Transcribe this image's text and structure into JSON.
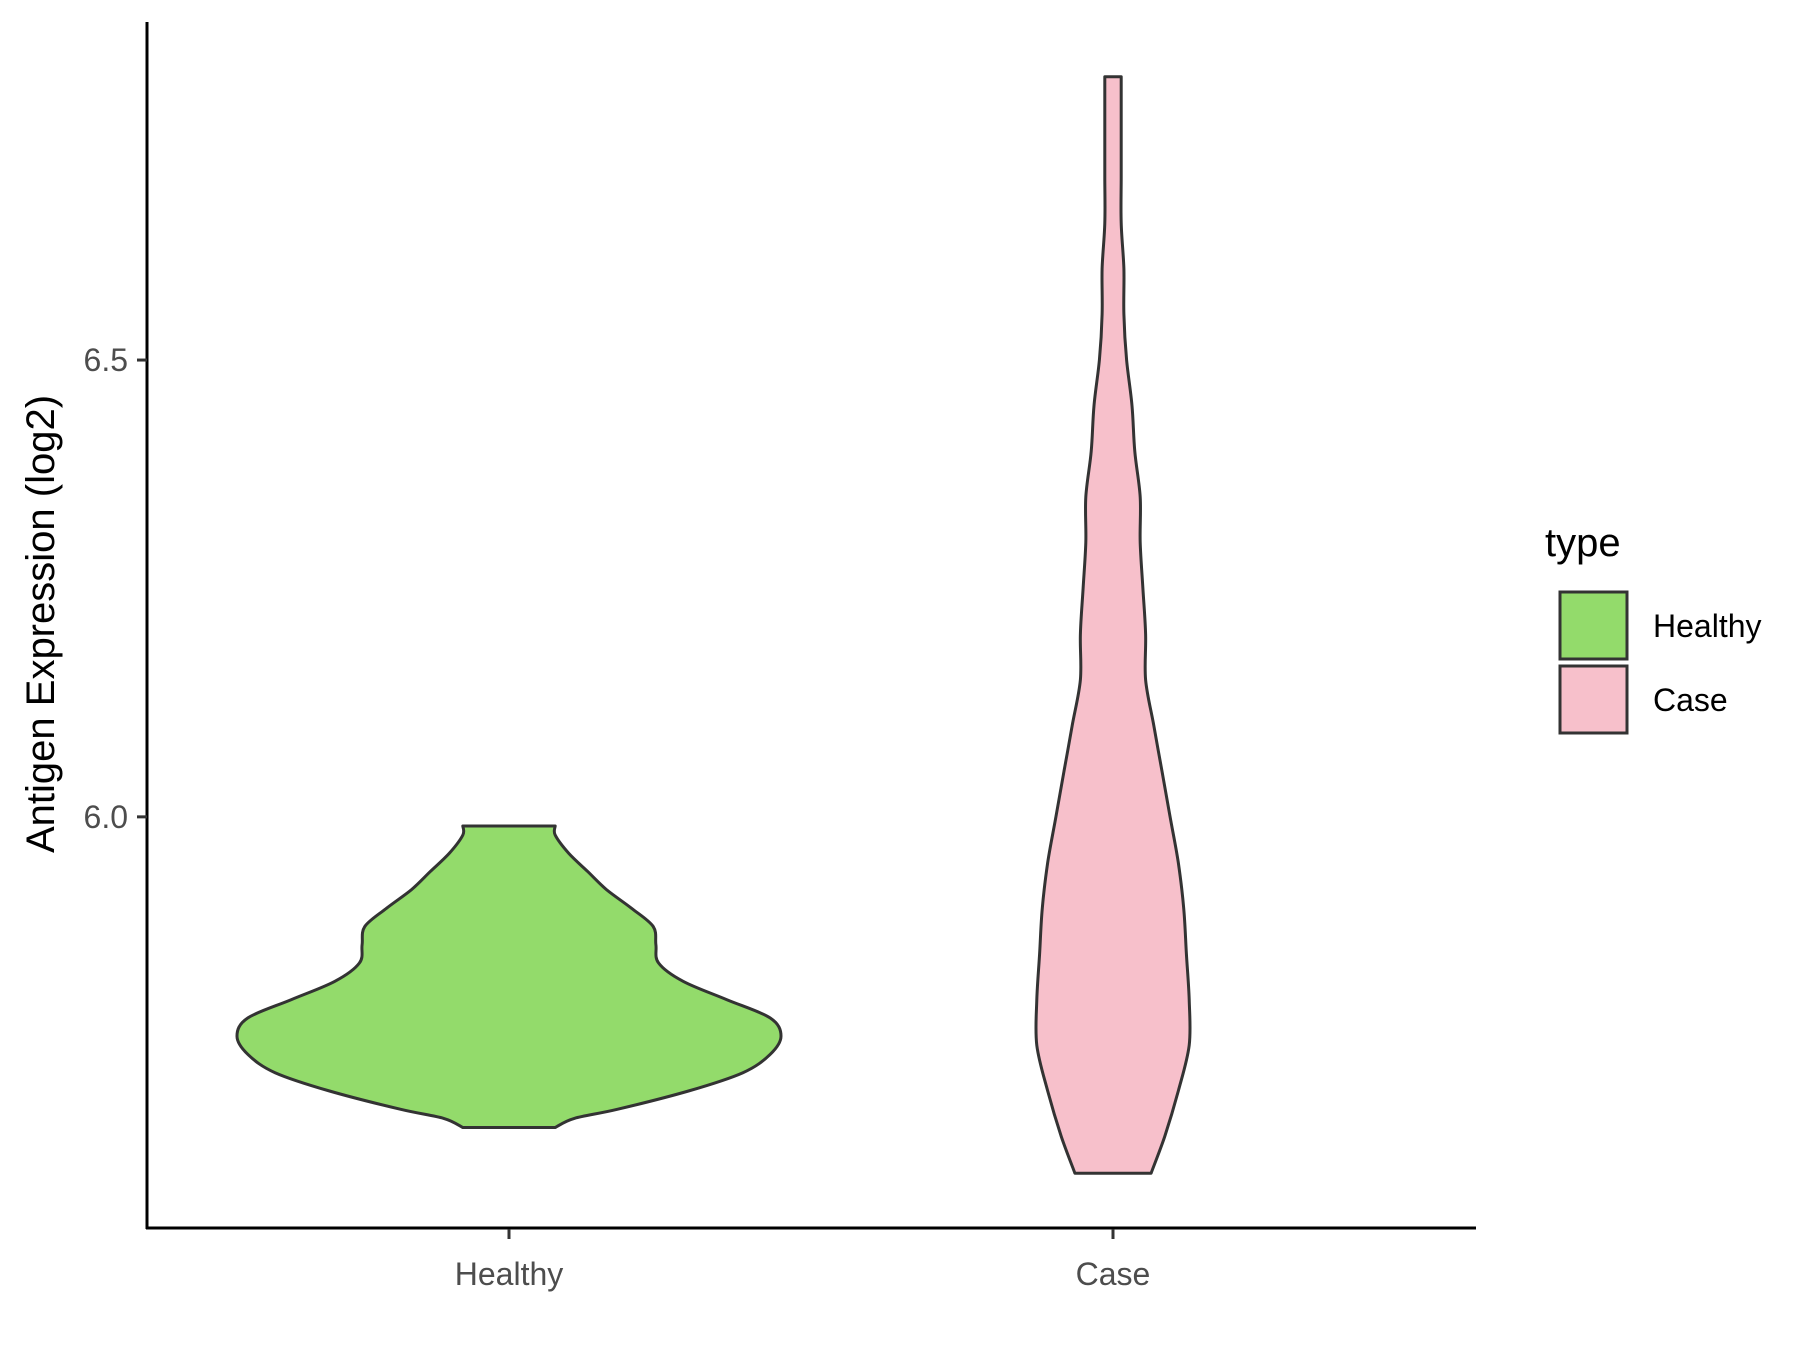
{
  "chart_data": {
    "type": "violin",
    "title": "",
    "xlabel": "",
    "ylabel": "Antigen Expression (log2)",
    "ylim": [
      5.55,
      6.87
    ],
    "yticks": [
      6.0,
      6.5
    ],
    "ytick_labels": [
      "6.0",
      "6.5"
    ],
    "categories": [
      "Healthy",
      "Case"
    ],
    "legend": {
      "title": "type",
      "position": "right",
      "entries": [
        {
          "label": "Healthy",
          "color": "#93DB6B"
        },
        {
          "label": "Case",
          "color": "#F7C0CB"
        }
      ]
    },
    "series": [
      {
        "name": "Healthy",
        "color": "#93DB6B",
        "min": 5.66,
        "max": 5.99,
        "density": [
          [
            5.66,
            0.17
          ],
          [
            5.67,
            0.24
          ],
          [
            5.68,
            0.4
          ],
          [
            5.7,
            0.66
          ],
          [
            5.72,
            0.86
          ],
          [
            5.74,
            0.96
          ],
          [
            5.76,
            1.0
          ],
          [
            5.78,
            0.96
          ],
          [
            5.8,
            0.8
          ],
          [
            5.82,
            0.64
          ],
          [
            5.84,
            0.55
          ],
          [
            5.86,
            0.54
          ],
          [
            5.88,
            0.53
          ],
          [
            5.9,
            0.45
          ],
          [
            5.92,
            0.36
          ],
          [
            5.94,
            0.29
          ],
          [
            5.96,
            0.22
          ],
          [
            5.98,
            0.17
          ],
          [
            5.99,
            0.17
          ]
        ]
      },
      {
        "name": "Case",
        "color": "#F7C0CB",
        "min": 5.61,
        "max": 6.81,
        "density": [
          [
            5.61,
            0.14
          ],
          [
            5.65,
            0.19
          ],
          [
            5.7,
            0.24
          ],
          [
            5.75,
            0.28
          ],
          [
            5.8,
            0.28
          ],
          [
            5.85,
            0.27
          ],
          [
            5.9,
            0.26
          ],
          [
            5.95,
            0.24
          ],
          [
            6.0,
            0.21
          ],
          [
            6.05,
            0.18
          ],
          [
            6.1,
            0.15
          ],
          [
            6.15,
            0.12
          ],
          [
            6.2,
            0.12
          ],
          [
            6.25,
            0.11
          ],
          [
            6.3,
            0.1
          ],
          [
            6.35,
            0.1
          ],
          [
            6.4,
            0.08
          ],
          [
            6.45,
            0.07
          ],
          [
            6.5,
            0.05
          ],
          [
            6.55,
            0.04
          ],
          [
            6.6,
            0.04
          ],
          [
            6.65,
            0.03
          ],
          [
            6.7,
            0.03
          ],
          [
            6.75,
            0.03
          ],
          [
            6.81,
            0.03
          ]
        ]
      }
    ]
  }
}
